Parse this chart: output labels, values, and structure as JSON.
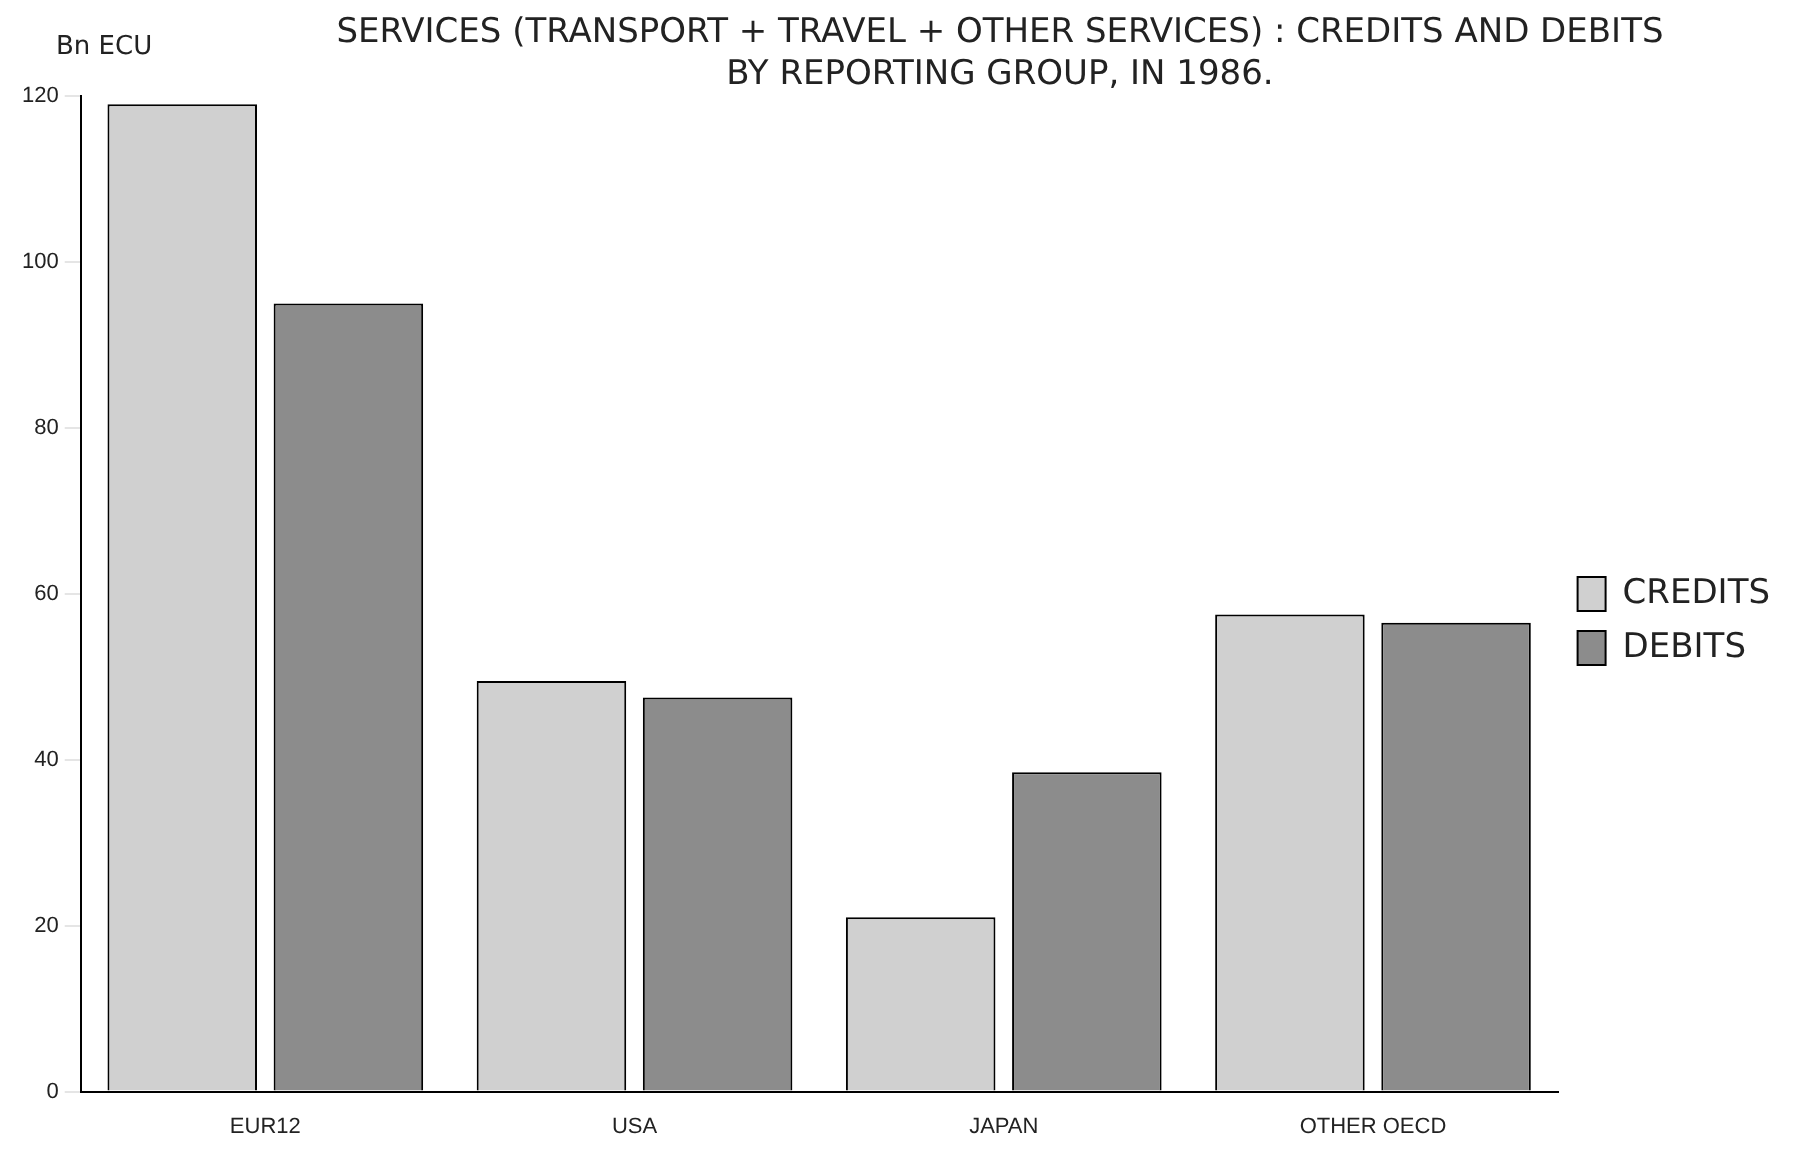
{
  "chart_data": {
    "type": "bar",
    "title": "SERVICES (TRANSPORT + TRAVEL + OTHER SERVICES) : CREDITS AND DEBITS BY REPORTING GROUP, IN 1986.",
    "ylabel": "Bn ECU",
    "categories": [
      "EUR12",
      "USA",
      "JAPAN",
      "OTHER OECD"
    ],
    "series": [
      {
        "name": "CREDITS",
        "color": "#d0d0d0",
        "values": [
          119,
          49.5,
          21,
          57.5
        ]
      },
      {
        "name": "DEBITS",
        "color": "#8c8c8c",
        "values": [
          95,
          47.5,
          38.5,
          56.5
        ]
      }
    ],
    "ylim": [
      0,
      120
    ],
    "yticks": [
      0,
      20,
      40,
      60,
      80,
      100,
      120
    ],
    "grid": false,
    "legend": "right"
  }
}
